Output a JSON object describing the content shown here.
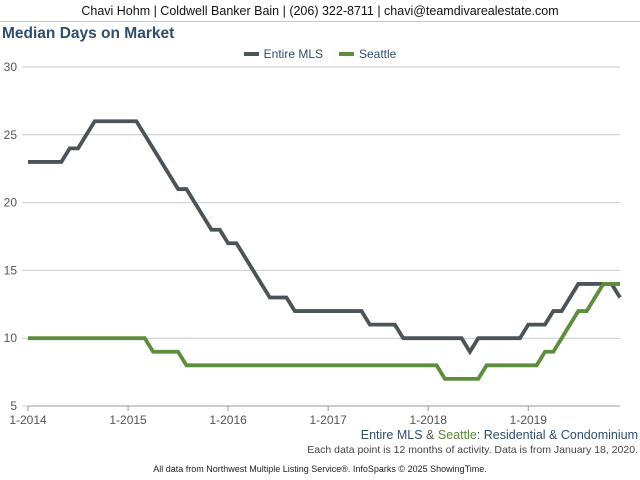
{
  "header": {
    "text": "Chavi Hohm | Coldwell Banker Bain | (206) 322-8711 | chavi@teamdivarealestate.com"
  },
  "chart_data": {
    "type": "line",
    "title": "Median Days on Market",
    "subtitle_parts": [
      "Entire MLS",
      " & ",
      "Seattle",
      ": Residential & Condominium"
    ],
    "note": "Each data point is 12 months of activity. Data is from January 18, 2020.",
    "source": "All data from Northwest Multiple Listing Service®. InfoSparks © 2025 ShowingTime.",
    "x": [
      "2014-01",
      "2014-02",
      "2014-03",
      "2014-04",
      "2014-05",
      "2014-06",
      "2014-07",
      "2014-08",
      "2014-09",
      "2014-10",
      "2014-11",
      "2014-12",
      "2015-01",
      "2015-02",
      "2015-03",
      "2015-04",
      "2015-05",
      "2015-06",
      "2015-07",
      "2015-08",
      "2015-09",
      "2015-10",
      "2015-11",
      "2015-12",
      "2016-01",
      "2016-02",
      "2016-03",
      "2016-04",
      "2016-05",
      "2016-06",
      "2016-07",
      "2016-08",
      "2016-09",
      "2016-10",
      "2016-11",
      "2016-12",
      "2017-01",
      "2017-02",
      "2017-03",
      "2017-04",
      "2017-05",
      "2017-06",
      "2017-07",
      "2017-08",
      "2017-09",
      "2017-10",
      "2017-11",
      "2017-12",
      "2018-01",
      "2018-02",
      "2018-03",
      "2018-04",
      "2018-05",
      "2018-06",
      "2018-07",
      "2018-08",
      "2018-09",
      "2018-10",
      "2018-11",
      "2018-12",
      "2019-01",
      "2019-02",
      "2019-03",
      "2019-04",
      "2019-05",
      "2019-06",
      "2019-07",
      "2019-08",
      "2019-09",
      "2019-10",
      "2019-11",
      "2019-12"
    ],
    "x_ticks": [
      "1-2014",
      "1-2015",
      "1-2016",
      "1-2017",
      "1-2018",
      "1-2019"
    ],
    "series": [
      {
        "name": "Entire MLS",
        "color": "#4a5459",
        "values": [
          23,
          23,
          23,
          23,
          23,
          24,
          24,
          25,
          26,
          26,
          26,
          26,
          26,
          26,
          25,
          24,
          23,
          22,
          21,
          21,
          20,
          19,
          18,
          18,
          17,
          17,
          16,
          15,
          14,
          13,
          13,
          13,
          12,
          12,
          12,
          12,
          12,
          12,
          12,
          12,
          12,
          11,
          11,
          11,
          11,
          10,
          10,
          10,
          10,
          10,
          10,
          10,
          10,
          9,
          10,
          10,
          10,
          10,
          10,
          10,
          11,
          11,
          11,
          12,
          12,
          13,
          14,
          14,
          14,
          14,
          14,
          13
        ]
      },
      {
        "name": "Seattle",
        "color": "#5e8d3d",
        "values": [
          10,
          10,
          10,
          10,
          10,
          10,
          10,
          10,
          10,
          10,
          10,
          10,
          10,
          10,
          10,
          9,
          9,
          9,
          9,
          8,
          8,
          8,
          8,
          8,
          8,
          8,
          8,
          8,
          8,
          8,
          8,
          8,
          8,
          8,
          8,
          8,
          8,
          8,
          8,
          8,
          8,
          8,
          8,
          8,
          8,
          8,
          8,
          8,
          8,
          8,
          7,
          7,
          7,
          7,
          7,
          8,
          8,
          8,
          8,
          8,
          8,
          8,
          9,
          9,
          10,
          11,
          12,
          12,
          13,
          14,
          14,
          14
        ]
      }
    ],
    "y_ticks": [
      5,
      10,
      15,
      20,
      25,
      30
    ],
    "ylim": [
      5,
      30
    ],
    "grid": true,
    "legend_position": "top-center"
  }
}
